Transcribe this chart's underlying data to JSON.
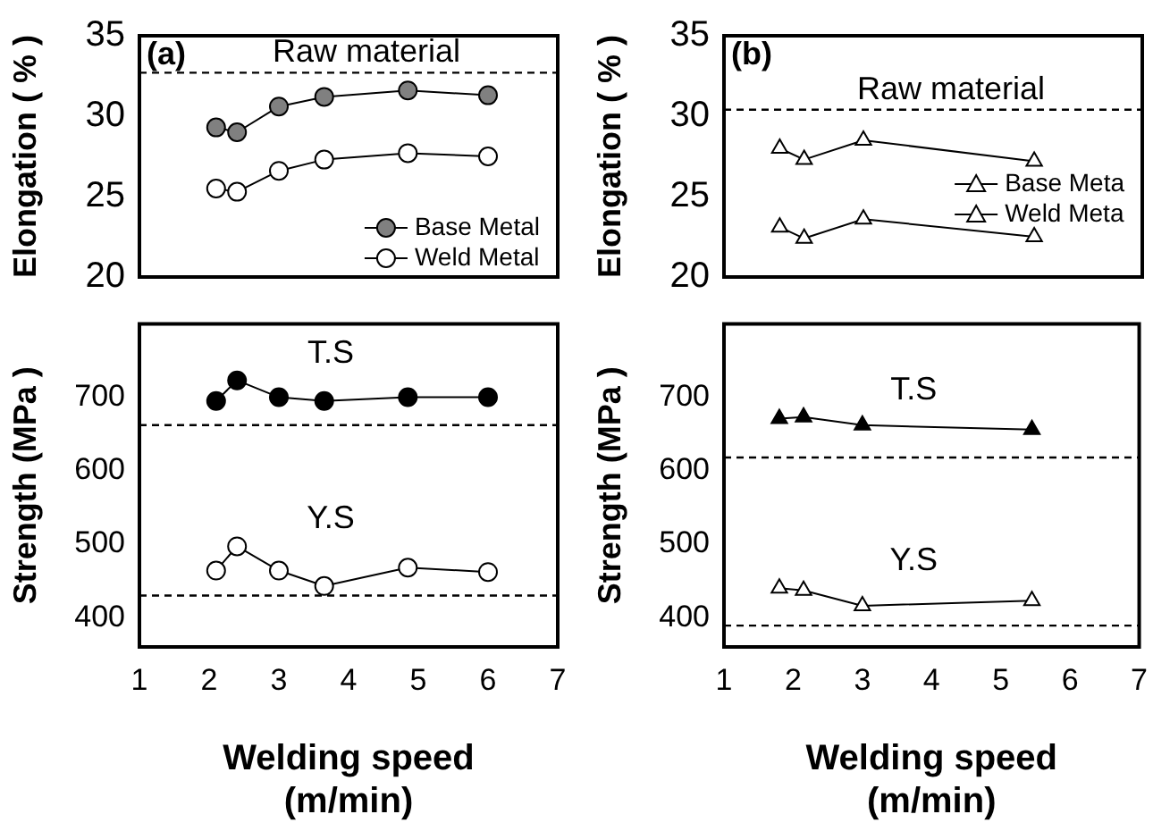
{
  "chart_data": [
    {
      "type": "line",
      "ylabel": "Elongation ( % )",
      "xlim": [
        1,
        7
      ],
      "xticks": [
        1,
        2,
        3,
        4,
        5,
        6,
        7
      ],
      "ylim": [
        20,
        35
      ],
      "yticks": [
        20,
        25,
        30,
        35
      ],
      "tick_labels": "y",
      "grid": false,
      "marker": "circle",
      "legend": "bottom right",
      "annotations": [
        "(a)"
      ],
      "ref_lines": [
        {
          "axis": "y",
          "value": 32.7,
          "label": "Raw material",
          "line_style": "dashed"
        }
      ],
      "x": [
        2.1,
        2.4,
        3,
        3.65,
        4.85,
        6
      ],
      "series": [
        {
          "name": "Base Metal",
          "color": "#808080",
          "values": [
            29.3,
            29.0,
            30.6,
            31.2,
            31.6,
            31.3
          ]
        },
        {
          "name": "Weld Metal",
          "color": "#ffffff",
          "values": [
            25.5,
            25.3,
            26.6,
            27.3,
            27.7,
            27.5
          ]
        }
      ]
    },
    {
      "type": "line",
      "ylabel": "Strength (MPa )",
      "xlabel": "Welding speed (m/min)",
      "xlim": [
        1,
        7
      ],
      "xticks": [
        1,
        2,
        3,
        4,
        5,
        6,
        7
      ],
      "ylim": [
        360,
        800
      ],
      "yticks": [
        400,
        500,
        600,
        700
      ],
      "grid": false,
      "marker": "circle",
      "legend": false,
      "ref_lines": [
        {
          "axis": "y",
          "value": 662,
          "line_style": "dashed"
        },
        {
          "axis": "y",
          "value": 430,
          "line_style": "dashed"
        }
      ],
      "x": [
        2.1,
        2.4,
        3,
        3.65,
        4.85,
        6
      ],
      "series": [
        {
          "name": "T.S",
          "color": "#000000",
          "values": [
            695,
            723,
            700,
            695,
            700,
            700
          ]
        },
        {
          "name": "Y.S",
          "color": "#ffffff",
          "values": [
            464,
            497,
            464,
            443,
            468,
            462
          ]
        }
      ]
    },
    {
      "type": "line",
      "ylabel": "Elongation ( % )",
      "xlim": [
        1,
        7
      ],
      "xticks": [
        1,
        2,
        3,
        4,
        5,
        6,
        7
      ],
      "ylim": [
        20,
        35
      ],
      "yticks": [
        20,
        25,
        30,
        35
      ],
      "tick_labels": "y",
      "grid": false,
      "marker": "triangle",
      "legend": "right",
      "annotations": [
        "(b)"
      ],
      "ref_lines": [
        {
          "axis": "y",
          "value": 30.4,
          "label": "Raw material",
          "line_style": "dashed"
        }
      ],
      "x": [
        1.8,
        2.15,
        3,
        5.45
      ],
      "series": [
        {
          "name": "Base Meta",
          "color": "#ffffff",
          "values": [
            28.0,
            27.3,
            28.5,
            27.2
          ]
        },
        {
          "name": "Weld Meta",
          "color": "#ffffff",
          "values": [
            23.1,
            22.4,
            23.6,
            22.5
          ]
        }
      ]
    },
    {
      "type": "line",
      "ylabel": "Strength (MPa )",
      "xlabel": "Welding speed (m/min)",
      "xlim": [
        1,
        7
      ],
      "xticks": [
        1,
        2,
        3,
        4,
        5,
        6,
        7
      ],
      "ylim": [
        360,
        800
      ],
      "yticks": [
        400,
        500,
        600,
        700
      ],
      "grid": false,
      "marker": "triangle",
      "legend": false,
      "ref_lines": [
        {
          "axis": "y",
          "value": 618,
          "line_style": "dashed"
        },
        {
          "axis": "y",
          "value": 389,
          "line_style": "dashed"
        }
      ],
      "x": [
        1.8,
        2.15,
        3,
        5.45
      ],
      "series": [
        {
          "name": "T.S",
          "color": "#000000",
          "values": [
            671,
            673,
            662,
            656
          ]
        },
        {
          "name": "Y.S",
          "color": "#ffffff",
          "values": [
            440,
            437,
            416,
            423
          ]
        }
      ]
    }
  ]
}
